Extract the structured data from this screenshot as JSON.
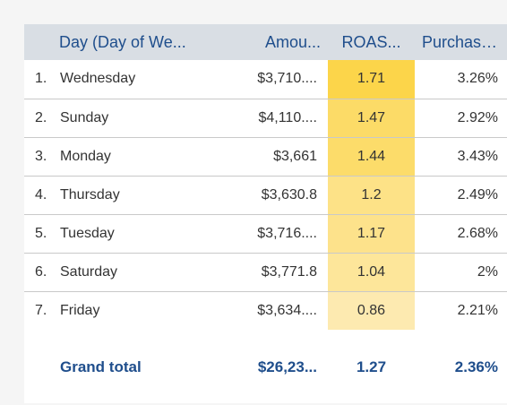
{
  "table": {
    "headers": {
      "day": "Day (Day of We...",
      "amount": "Amou...",
      "roas": "ROAS...",
      "purchase": "Purchase%"
    },
    "rows": [
      {
        "index": "1.",
        "day": "Wednesday",
        "amount": "$3,710....",
        "roas": "1.71",
        "purchase": "3.26%",
        "roas_value": 1.71
      },
      {
        "index": "2.",
        "day": "Sunday",
        "amount": "$4,110....",
        "roas": "1.47",
        "purchase": "2.92%",
        "roas_value": 1.47
      },
      {
        "index": "3.",
        "day": "Monday",
        "amount": "$3,661",
        "roas": "1.44",
        "purchase": "3.43%",
        "roas_value": 1.44
      },
      {
        "index": "4.",
        "day": "Thursday",
        "amount": "$3,630.8",
        "roas": "1.2",
        "purchase": "2.49%",
        "roas_value": 1.2
      },
      {
        "index": "5.",
        "day": "Tuesday",
        "amount": "$3,716....",
        "roas": "1.17",
        "purchase": "2.68%",
        "roas_value": 1.17
      },
      {
        "index": "6.",
        "day": "Saturday",
        "amount": "$3,771.8",
        "roas": "1.04",
        "purchase": "2%",
        "roas_value": 1.04
      },
      {
        "index": "7.",
        "day": "Friday",
        "amount": "$3,634....",
        "roas": "0.86",
        "purchase": "2.21%",
        "roas_value": 0.86
      }
    ],
    "footer": {
      "label": "Grand total",
      "amount": "$26,23...",
      "roas": "1.27",
      "purchase": "2.36%"
    }
  },
  "colors": {
    "header_bg": "#d9dee4",
    "header_text": "#1f4e8c",
    "heat_high": "#fcd54a",
    "heat_low": "#fdeab0"
  }
}
